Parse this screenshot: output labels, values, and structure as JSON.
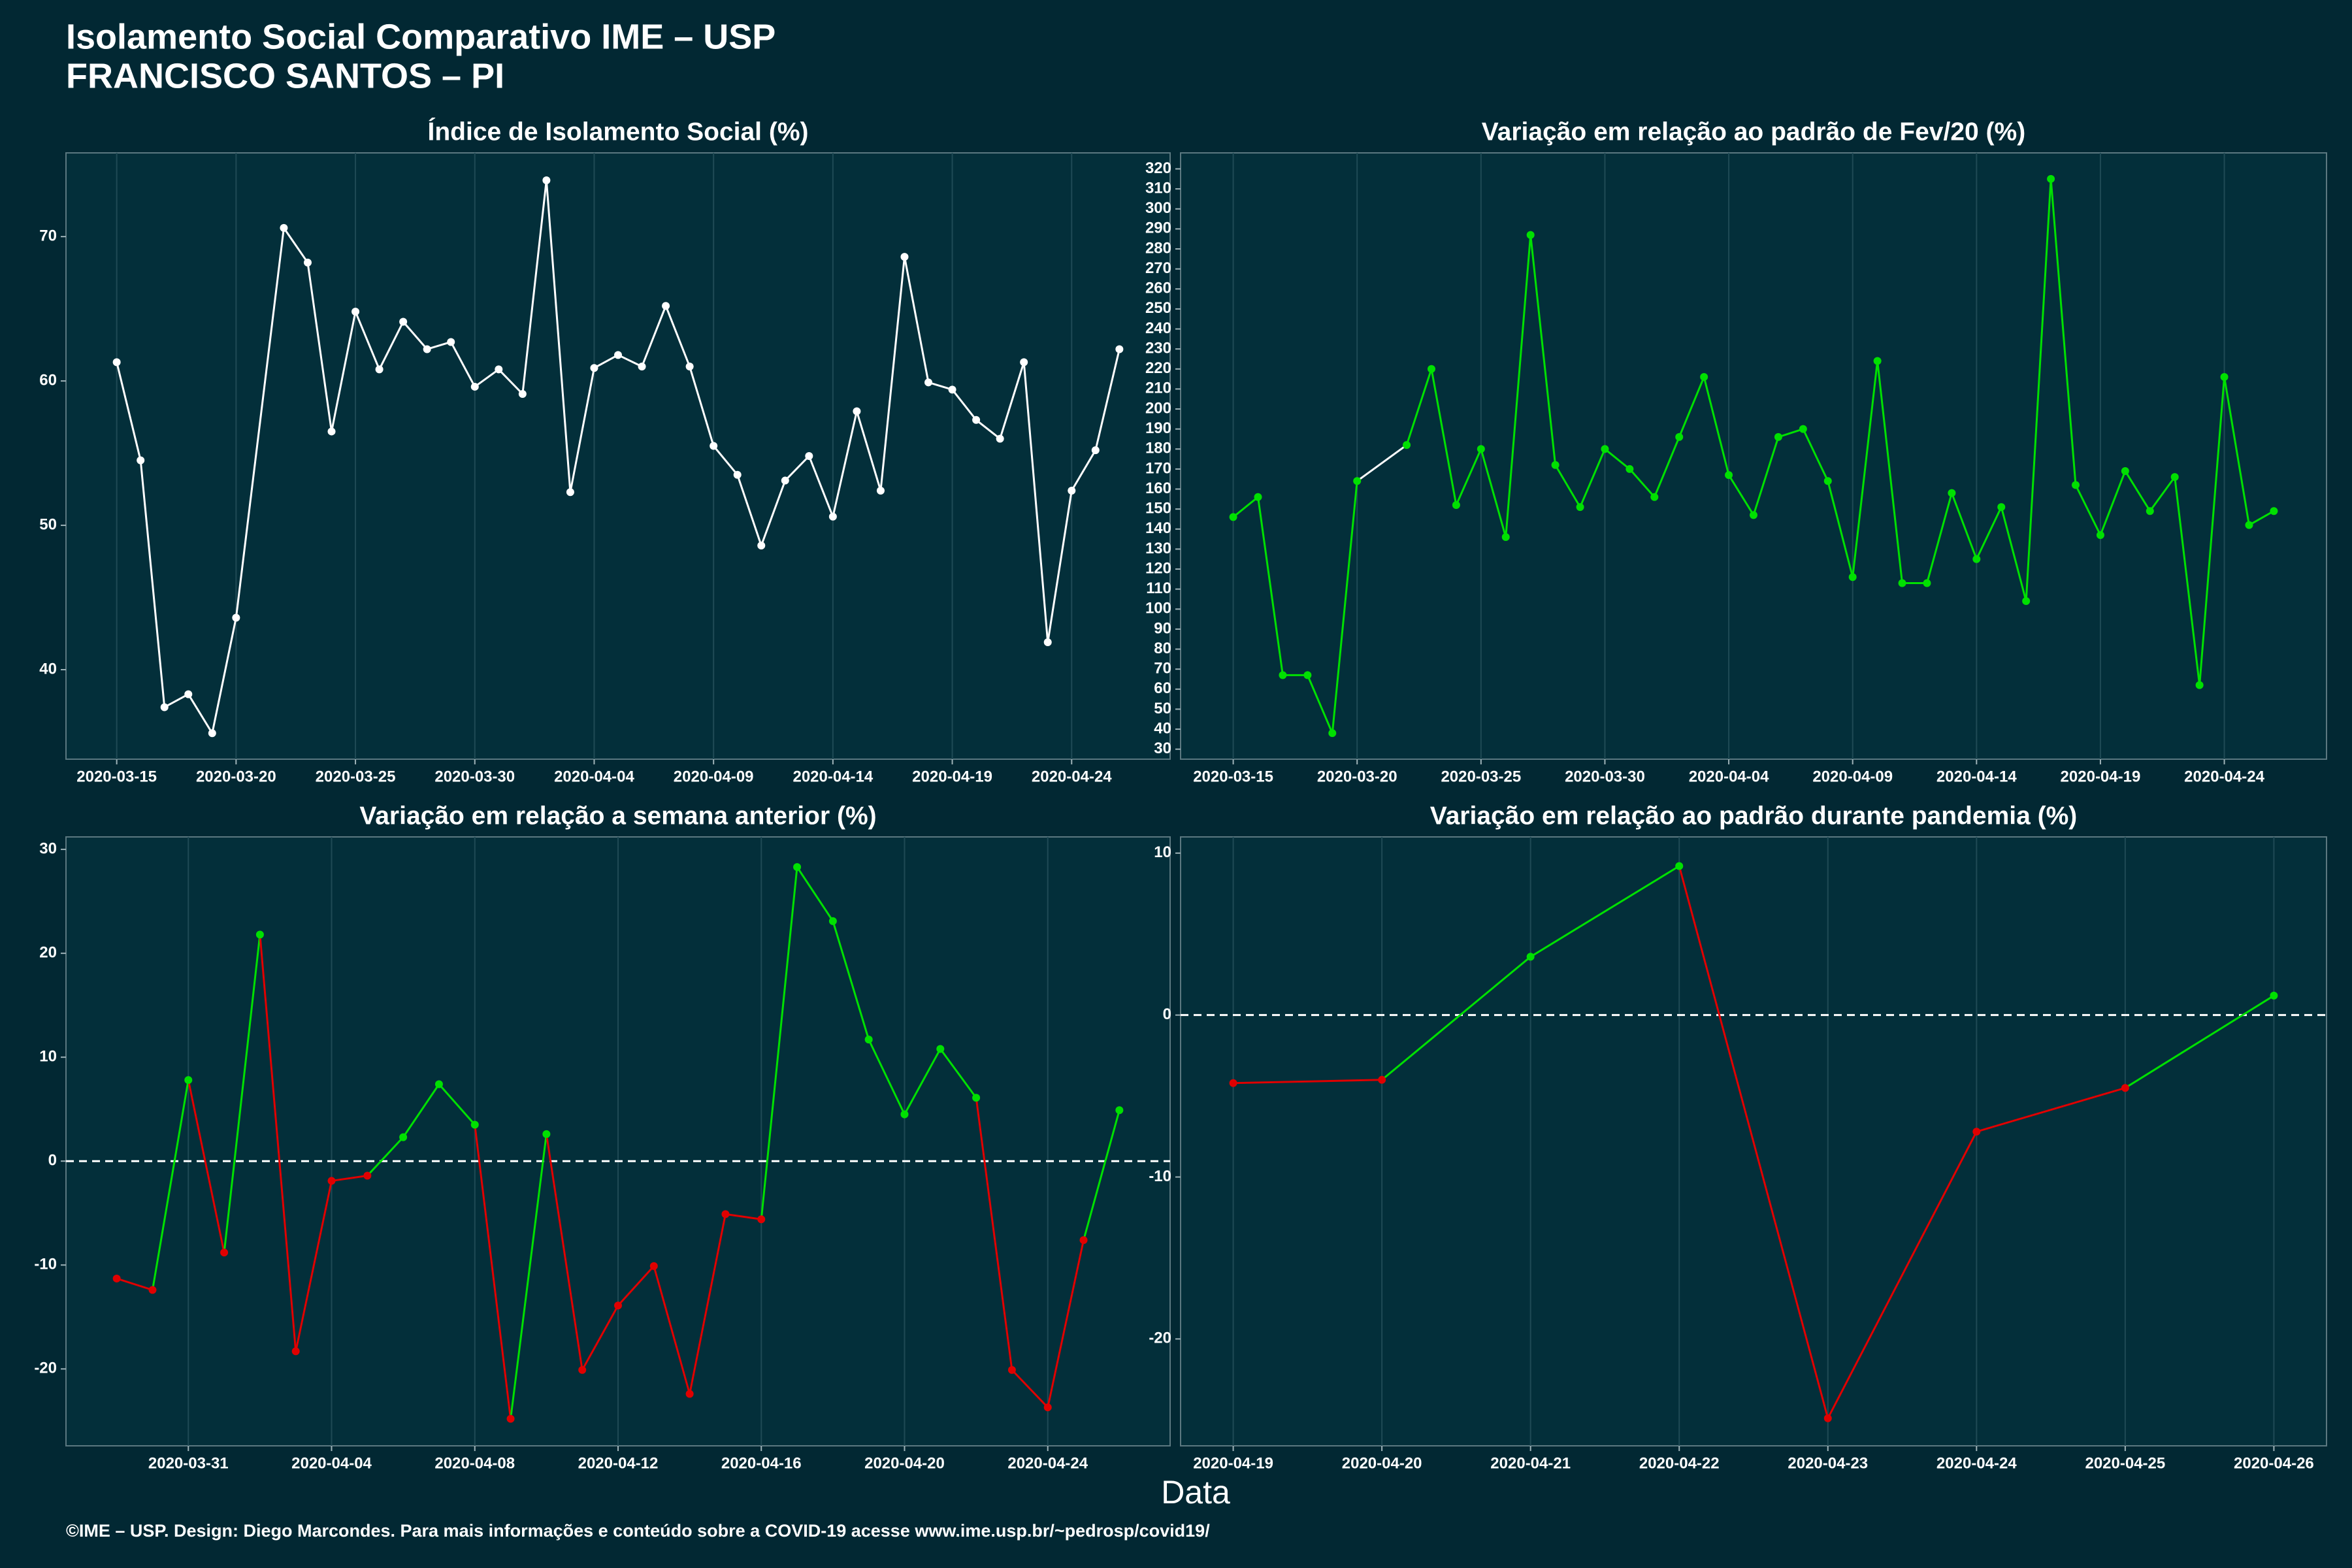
{
  "title": "Isolamento Social Comparativo IME – USP",
  "subtitle": "FRANCISCO SANTOS – PI",
  "xlabel": "Data",
  "footer": "©IME – USP. Design: Diego Marcondes. Para mais informações e conteúdo sobre a COVID-19 acesse www.ime.usp.br/~pedrosp/covid19/",
  "chart_data": [
    {
      "type": "line",
      "title": "Índice de Isolamento Social (%)",
      "color": "#ffffff",
      "markers": true,
      "x": [
        "2020-03-15",
        "2020-03-16",
        "2020-03-17",
        "2020-03-18",
        "2020-03-19",
        "2020-03-20",
        "2020-03-22",
        "2020-03-23",
        "2020-03-24",
        "2020-03-25",
        "2020-03-26",
        "2020-03-27",
        "2020-03-28",
        "2020-03-29",
        "2020-03-30",
        "2020-03-31",
        "2020-04-01",
        "2020-04-02",
        "2020-04-03",
        "2020-04-04",
        "2020-04-05",
        "2020-04-06",
        "2020-04-07",
        "2020-04-08",
        "2020-04-09",
        "2020-04-10",
        "2020-04-11",
        "2020-04-12",
        "2020-04-13",
        "2020-04-14",
        "2020-04-15",
        "2020-04-16",
        "2020-04-17",
        "2020-04-18",
        "2020-04-19",
        "2020-04-20",
        "2020-04-21",
        "2020-04-22",
        "2020-04-23",
        "2020-04-24",
        "2020-04-25",
        "2020-04-26"
      ],
      "values": [
        61.3,
        54.5,
        37.4,
        38.3,
        35.6,
        43.6,
        70.6,
        68.2,
        56.5,
        64.8,
        60.8,
        64.1,
        62.2,
        62.7,
        59.6,
        60.8,
        59.1,
        73.9,
        52.3,
        60.9,
        61.8,
        61.0,
        65.2,
        61.0,
        55.5,
        53.5,
        48.6,
        53.1,
        54.8,
        50.6,
        57.9,
        52.4,
        68.6,
        59.9,
        59.4,
        57.3,
        56.0,
        61.3,
        41.9,
        52.4,
        55.2,
        62.2
      ],
      "xlim": [
        "2020-03-12T21:00:00Z",
        "2020-04-28T03:00:00Z"
      ],
      "xticks": [
        "2020-03-15",
        "2020-03-20",
        "2020-03-25",
        "2020-03-30",
        "2020-04-04",
        "2020-04-09",
        "2020-04-14",
        "2020-04-19",
        "2020-04-24"
      ],
      "ylim": [
        33.8,
        75.8
      ],
      "yticks": [
        40,
        50,
        60,
        70
      ],
      "grid": true
    },
    {
      "type": "line",
      "title": "Variação em relação ao padrão de Fev/20 (%)",
      "color": "#00e000",
      "gap_color": "#ffffff",
      "markers": true,
      "x": [
        "2020-03-15",
        "2020-03-16",
        "2020-03-17",
        "2020-03-18",
        "2020-03-19",
        "2020-03-20",
        "2020-03-22",
        "2020-03-23",
        "2020-03-24",
        "2020-03-25",
        "2020-03-26",
        "2020-03-27",
        "2020-03-28",
        "2020-03-29",
        "2020-03-30",
        "2020-03-31",
        "2020-04-01",
        "2020-04-02",
        "2020-04-03",
        "2020-04-04",
        "2020-04-05",
        "2020-04-06",
        "2020-04-07",
        "2020-04-08",
        "2020-04-09",
        "2020-04-10",
        "2020-04-11",
        "2020-04-12",
        "2020-04-13",
        "2020-04-14",
        "2020-04-15",
        "2020-04-16",
        "2020-04-17",
        "2020-04-18",
        "2020-04-19",
        "2020-04-20",
        "2020-04-21",
        "2020-04-22",
        "2020-04-23",
        "2020-04-24",
        "2020-04-25",
        "2020-04-26"
      ],
      "values": [
        146,
        156,
        67,
        67,
        38,
        164,
        182,
        220,
        152,
        180,
        136,
        287,
        172,
        151,
        180,
        170,
        156,
        186,
        216,
        167,
        147,
        186,
        190,
        164,
        116,
        224,
        113,
        113,
        158,
        125,
        151,
        104,
        315,
        162,
        137,
        169,
        149,
        166,
        62,
        216,
        142,
        149
      ],
      "xlim": [
        "2020-03-12T21:00:00Z",
        "2020-04-28T03:00:00Z"
      ],
      "xticks": [
        "2020-03-15",
        "2020-03-20",
        "2020-03-25",
        "2020-03-30",
        "2020-04-04",
        "2020-04-09",
        "2020-04-14",
        "2020-04-19",
        "2020-04-24"
      ],
      "ylim": [
        25,
        328
      ],
      "yticks": [
        30,
        40,
        50,
        60,
        70,
        80,
        90,
        100,
        110,
        120,
        130,
        140,
        150,
        160,
        170,
        180,
        190,
        200,
        210,
        220,
        230,
        240,
        250,
        260,
        270,
        280,
        290,
        300,
        310,
        320
      ],
      "grid": true
    },
    {
      "type": "line",
      "title": "Variação em relação a semana anterior (%)",
      "color_positive": "#00e000",
      "color_negative": "#e00000",
      "markers": true,
      "hline": 0,
      "x": [
        "2020-03-29",
        "2020-03-30",
        "2020-03-31",
        "2020-04-01",
        "2020-04-02",
        "2020-04-03",
        "2020-04-04",
        "2020-04-05",
        "2020-04-06",
        "2020-04-07",
        "2020-04-08",
        "2020-04-09",
        "2020-04-10",
        "2020-04-11",
        "2020-04-12",
        "2020-04-13",
        "2020-04-14",
        "2020-04-15",
        "2020-04-16",
        "2020-04-17",
        "2020-04-18",
        "2020-04-19",
        "2020-04-20",
        "2020-04-21",
        "2020-04-22",
        "2020-04-23",
        "2020-04-24",
        "2020-04-25",
        "2020-04-26"
      ],
      "values": [
        -11.3,
        -12.4,
        7.8,
        -8.8,
        21.8,
        -18.3,
        -1.9,
        -1.4,
        2.3,
        7.4,
        3.5,
        -24.8,
        2.6,
        -20.1,
        -13.9,
        -10.1,
        -22.4,
        -5.1,
        -5.6,
        28.3,
        23.1,
        11.7,
        4.5,
        10.8,
        6.1,
        -20.1,
        -23.7,
        -7.6,
        4.9
      ],
      "xlim": [
        "2020-03-27T14:00:00Z",
        "2020-04-27T10:00:00Z"
      ],
      "xticks": [
        "2020-03-31",
        "2020-04-04",
        "2020-04-08",
        "2020-04-12",
        "2020-04-16",
        "2020-04-20",
        "2020-04-24"
      ],
      "ylim": [
        -27.4,
        31.2
      ],
      "yticks": [
        -20,
        -10,
        0,
        10,
        20,
        30
      ],
      "grid": true
    },
    {
      "type": "line",
      "title": "Variação em relação ao padrão durante pandemia (%)",
      "color_positive": "#00e000",
      "color_negative": "#e00000",
      "markers": true,
      "hline": 0,
      "x": [
        "2020-04-19",
        "2020-04-20",
        "2020-04-21",
        "2020-04-22",
        "2020-04-23",
        "2020-04-24",
        "2020-04-25",
        "2020-04-26"
      ],
      "values": [
        -4.2,
        -4.0,
        3.6,
        9.2,
        -24.9,
        -7.2,
        -4.5,
        1.2
      ],
      "xlim": [
        "2020-04-18T15:30:00Z",
        "2020-04-26T08:30:00Z"
      ],
      "xticks": [
        "2020-04-19",
        "2020-04-20",
        "2020-04-21",
        "2020-04-22",
        "2020-04-23",
        "2020-04-24",
        "2020-04-25",
        "2020-04-26"
      ],
      "ylim": [
        -26.6,
        11.0
      ],
      "yticks": [
        -20,
        -10,
        0,
        10
      ],
      "grid": true
    }
  ]
}
